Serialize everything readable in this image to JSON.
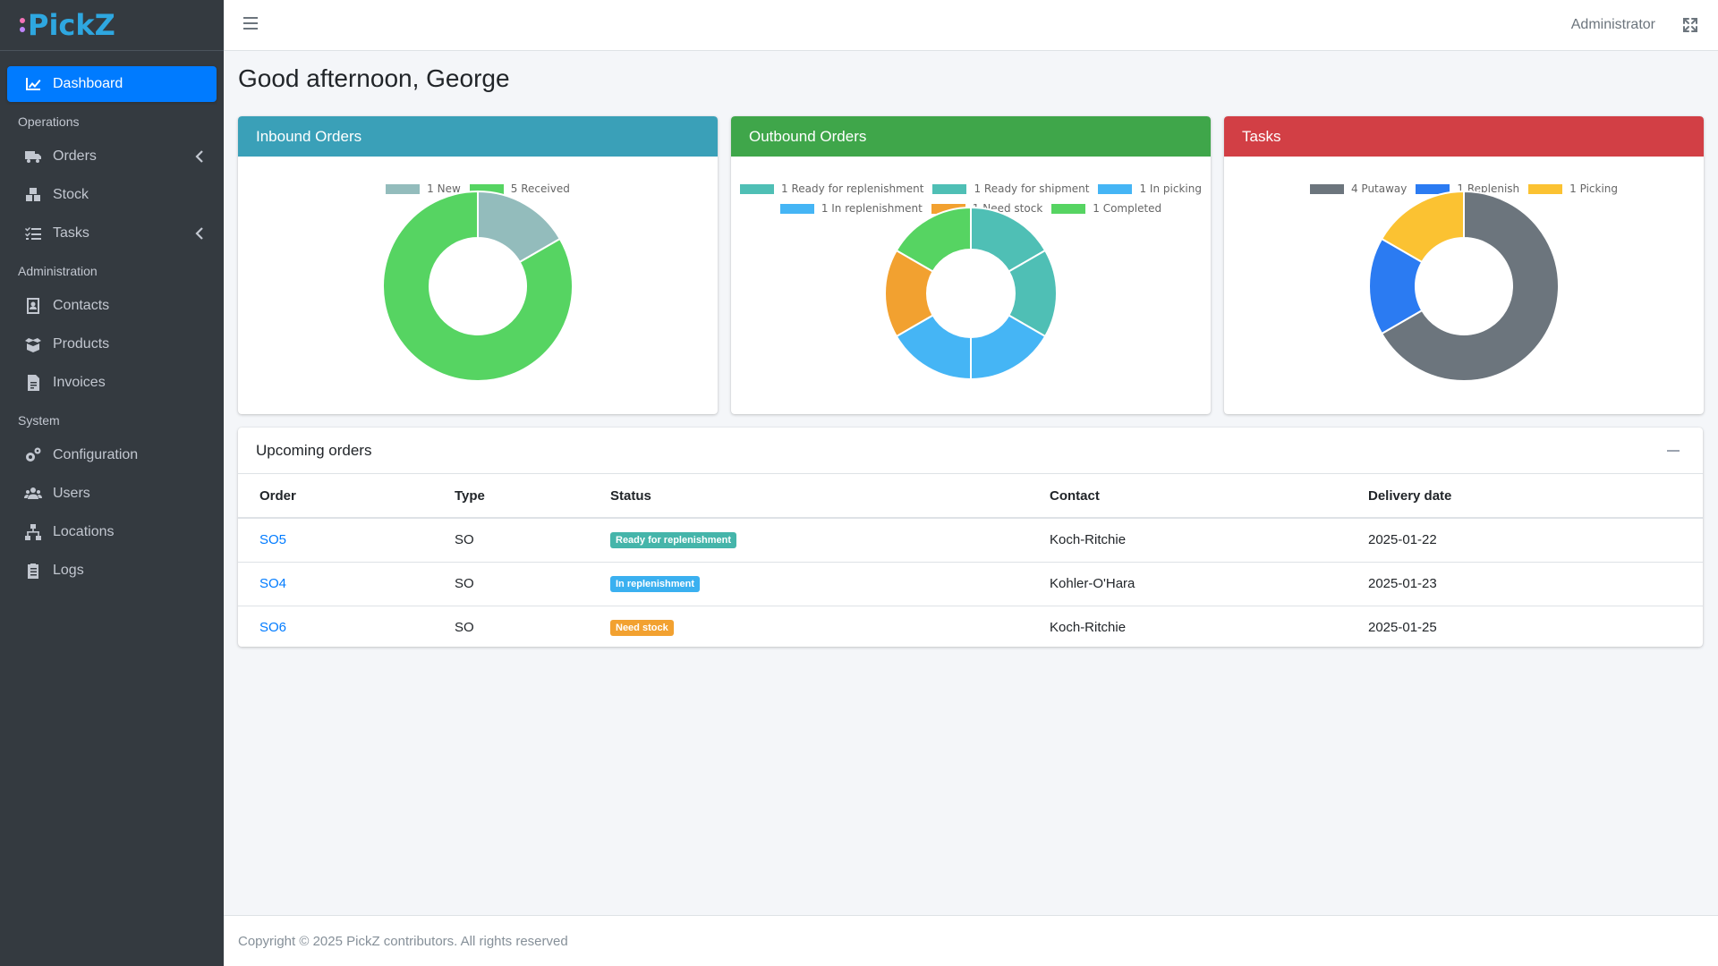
{
  "brand": {
    "name": "PickZ"
  },
  "topbar": {
    "user": "Administrator"
  },
  "sidebar": {
    "items": [
      {
        "type": "item",
        "label": "Dashboard",
        "icon": "chart-icon",
        "active": true
      },
      {
        "type": "header",
        "label": "Operations"
      },
      {
        "type": "item",
        "label": "Orders",
        "icon": "truck-icon",
        "chevron": true
      },
      {
        "type": "item",
        "label": "Stock",
        "icon": "boxes-icon"
      },
      {
        "type": "item",
        "label": "Tasks",
        "icon": "tasks-icon",
        "chevron": true
      },
      {
        "type": "header",
        "label": "Administration"
      },
      {
        "type": "item",
        "label": "Contacts",
        "icon": "contact-icon"
      },
      {
        "type": "item",
        "label": "Products",
        "icon": "box-open-icon"
      },
      {
        "type": "item",
        "label": "Invoices",
        "icon": "invoice-icon"
      },
      {
        "type": "header",
        "label": "System"
      },
      {
        "type": "item",
        "label": "Configuration",
        "icon": "cogs-icon"
      },
      {
        "type": "item",
        "label": "Users",
        "icon": "users-icon"
      },
      {
        "type": "item",
        "label": "Locations",
        "icon": "sitemap-icon"
      },
      {
        "type": "item",
        "label": "Logs",
        "icon": "clipboard-icon"
      }
    ]
  },
  "main": {
    "greeting": "Good afternoon, George"
  },
  "chart_data": [
    {
      "type": "pie",
      "title": "Inbound Orders",
      "header_color": "#3aa0b8",
      "labels": [
        "1 New",
        "5 Received"
      ],
      "values": [
        1,
        5
      ],
      "colors": [
        "#93bcbc",
        "#56d462"
      ]
    },
    {
      "type": "pie",
      "title": "Outbound Orders",
      "header_color": "#3fa64a",
      "labels": [
        "1 Ready for replenishment",
        "1 Ready for shipment",
        "1 In picking",
        "1 In replenishment",
        "1 Need stock",
        "1 Completed"
      ],
      "values": [
        1,
        1,
        1,
        1,
        1,
        1
      ],
      "colors": [
        "#4fbfb5",
        "#4fbfb5",
        "#45b5f5",
        "#45b5f5",
        "#f2a130",
        "#56d462"
      ]
    },
    {
      "type": "pie",
      "title": "Tasks",
      "header_color": "#d23f45",
      "labels": [
        "4 Putaway",
        "1 Replenish",
        "1 Picking"
      ],
      "values": [
        4,
        1,
        1
      ],
      "colors": [
        "#6c757d",
        "#2b7bf2",
        "#fbc232"
      ]
    }
  ],
  "orders": {
    "title": "Upcoming orders",
    "columns": [
      "Order",
      "Type",
      "Status",
      "Contact",
      "Delivery date"
    ],
    "rows": [
      {
        "order": "SO5",
        "type": "SO",
        "status": "Ready for replenishment",
        "status_color": "#45b5aa",
        "contact": "Koch-Ritchie",
        "date": "2025-01-22"
      },
      {
        "order": "SO4",
        "type": "SO",
        "status": "In replenishment",
        "status_color": "#3ab0f0",
        "contact": "Kohler-O'Hara",
        "date": "2025-01-23"
      },
      {
        "order": "SO6",
        "type": "SO",
        "status": "Need stock",
        "status_color": "#f2a130",
        "contact": "Koch-Ritchie",
        "date": "2025-01-25"
      }
    ]
  },
  "footer": {
    "text": "Copyright © 2025 PickZ contributors. All rights reserved"
  }
}
